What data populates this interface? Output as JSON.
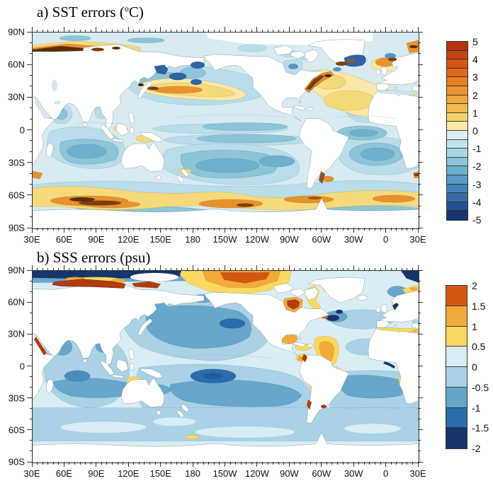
{
  "figure": {
    "bg": "#ffffff",
    "panels": [
      {
        "id": "a",
        "title_pre": "a) SST errors (",
        "title_sup": "o",
        "title_post": "C)",
        "variable": "SST error",
        "units": "°C"
      },
      {
        "id": "b",
        "title_pre": "b) SSS errors (psu)",
        "title_sup": "",
        "title_post": "",
        "variable": "SSS error",
        "units": "psu"
      }
    ]
  },
  "axes": {
    "x_labels": [
      "30E",
      "60E",
      "90E",
      "120E",
      "150E",
      "180",
      "150W",
      "120W",
      "90W",
      "60W",
      "30W",
      "0",
      "30E"
    ],
    "y_labels": [
      "90N",
      "60N",
      "30N",
      "0",
      "30S",
      "60S",
      "90S"
    ],
    "x_minor_step_deg": 5,
    "y_minor_step_deg": 10
  },
  "colorbars": {
    "a": {
      "tick_labels": [
        "5",
        "4",
        "3",
        "2",
        "1",
        "0",
        "-1",
        "-2",
        "-3",
        "-4",
        "-5"
      ],
      "colors": [
        "#b2330e",
        "#c54310",
        "#d35413",
        "#e0661a",
        "#e77d25",
        "#eb9332",
        "#efa841",
        "#f3bc52",
        "#f7d26c",
        "#fbeaa6",
        "#dceff4",
        "#c2e4ed",
        "#a7d6e5",
        "#8ac5da",
        "#6db0d0",
        "#579ac6",
        "#4484ba",
        "#336ca9",
        "#235092",
        "#16356f"
      ]
    },
    "b": {
      "tick_labels": [
        "2",
        "1.5",
        "1",
        "0.5",
        "0",
        "-0.5",
        "-1",
        "-1.5",
        "-2"
      ],
      "colors": [
        "#d2590f",
        "#f2ab3a",
        "#f9d960",
        "#d8ecf5",
        "#a8d1e3",
        "#64a5ca",
        "#2b6cab",
        "#16356b"
      ]
    }
  },
  "chart_data": [
    {
      "type": "heatmap",
      "subtype": "filled_contour_world_map",
      "title": "a) SST errors (°C)",
      "variable": "sea surface temperature error",
      "units": "°C",
      "projection": "equirectangular",
      "lon_start": "30E",
      "lon_span_deg": 360,
      "lat_range": [
        "90S",
        "90N"
      ],
      "x_ticks": [
        "30E",
        "60E",
        "90E",
        "120E",
        "150E",
        "180",
        "150W",
        "120W",
        "90W",
        "60W",
        "30W",
        "0",
        "30E"
      ],
      "y_ticks": [
        "90N",
        "60N",
        "30N",
        "0",
        "30S",
        "60S",
        "90S"
      ],
      "contour_interval": 0.5,
      "colorbar_range": [
        -5,
        5
      ],
      "colorbar_tick_labels": [
        5,
        4,
        3,
        2,
        1,
        0,
        -1,
        -2,
        -3,
        -4,
        -5
      ],
      "palette_top_to_bottom": [
        "#b2330e",
        "#c54310",
        "#d35413",
        "#e0661a",
        "#e77d25",
        "#eb9332",
        "#efa841",
        "#f3bc52",
        "#f7d26c",
        "#fbeaa6",
        "#dceff4",
        "#c2e4ed",
        "#a7d6e5",
        "#8ac5da",
        "#6db0d0",
        "#579ac6",
        "#4484ba",
        "#336ca9",
        "#235092",
        "#16356f"
      ],
      "land_color": "#ffffff",
      "grid": false,
      "legend_position": "right-colorbar",
      "features": [
        {
          "region": "Kuroshio Extension, NW Pacific ~35N",
          "value": "+1 to +3"
        },
        {
          "region": "Gulf Stream / NW Atlantic coastal band",
          "value": "+3 to +5"
        },
        {
          "region": "Central North Atlantic 30-50N",
          "value": "+1 to +2"
        },
        {
          "region": "Norwegian / Barents Sea coasts",
          "value": "+2 to +5"
        },
        {
          "region": "Siberian Arctic shelf coast",
          "value": "+3 to +5"
        },
        {
          "region": "Antarctic Circumpolar band 45-60S (circumglobal)",
          "value": "+1 to +3, cores +2 to +4 south of Indian Ocean"
        },
        {
          "region": "Agulhas retroflection",
          "value": "+1 to +3"
        },
        {
          "region": "Brazil-Malvinas confluence",
          "value": "+1 to +3"
        },
        {
          "region": "Subtropical gyres (S Indian, S Pacific, S Atlantic)",
          "value": "-1 to -2"
        },
        {
          "region": "Tropical Pacific off-equatorial bands",
          "value": "-1 to -2"
        },
        {
          "region": "Tropical Atlantic",
          "value": "-1 to -2"
        },
        {
          "region": "Sea of Okhotsk / NW subarctic Pacific",
          "value": "-3 to -4"
        },
        {
          "region": "Bering Sea",
          "value": "-3 to -4"
        },
        {
          "region": "East Greenland / Iceland waters",
          "value": "-3 to -4"
        },
        {
          "region": "Most open ocean background",
          "value": "0 to -1"
        }
      ]
    },
    {
      "type": "heatmap",
      "subtype": "filled_contour_world_map",
      "title": "b) SSS errors (psu)",
      "variable": "sea surface salinity error",
      "units": "psu",
      "projection": "equirectangular",
      "lon_start": "30E",
      "lon_span_deg": 360,
      "lat_range": [
        "90S",
        "90N"
      ],
      "x_ticks": [
        "30E",
        "60E",
        "90E",
        "120E",
        "150E",
        "180",
        "150W",
        "120W",
        "90W",
        "60W",
        "30W",
        "0",
        "30E"
      ],
      "y_ticks": [
        "90N",
        "60N",
        "30N",
        "0",
        "30S",
        "60S",
        "90S"
      ],
      "contour_interval": 0.5,
      "colorbar_range": [
        -2,
        2
      ],
      "colorbar_tick_labels": [
        2,
        1.5,
        1,
        0.5,
        0,
        -0.5,
        -1,
        -1.5,
        -2
      ],
      "palette_top_to_bottom": [
        "#d2590f",
        "#f2ab3a",
        "#f9d960",
        "#d8ecf5",
        "#a8d1e3",
        "#64a5ca",
        "#2b6cab",
        "#16356b"
      ],
      "land_color": "#ffffff",
      "grid": false,
      "legend_position": "right-colorbar",
      "features": [
        {
          "region": "Central Arctic 85-90N band",
          "value": "-1.5 to -2"
        },
        {
          "region": "Siberian shelf seas (Kara/Laptev coast)",
          "value": "> +2"
        },
        {
          "region": "High-Arctic blob ~180-130W, 75-88N",
          "value": "+1 to +2"
        },
        {
          "region": "Hudson Bay",
          "value": "+1.5 to > +2"
        },
        {
          "region": "Labrador / Baffin coasts, Greenland fringe",
          "value": "+0.5 to +1.5"
        },
        {
          "region": "Gulf of Mexico / Caribbean spots",
          "value": "+1 to +2"
        },
        {
          "region": "Amazon-Orinoco plume, W tropical Atlantic",
          "value": "+0.5 to +2"
        },
        {
          "region": "Panama Bight / Colombia Pacific coast",
          "value": "+1 to +2"
        },
        {
          "region": "Mediterranean Sea",
          "value": "+0.5 to +1"
        },
        {
          "region": "Red Sea",
          "value": "> +1.5"
        },
        {
          "region": "Peru and NE Brazil coastal strips",
          "value": "+0.5 to +1"
        },
        {
          "region": "Baltic Sea and subpolar N Atlantic spots",
          "value": "-1.5 to -2"
        },
        {
          "region": "North Pacific central gyre",
          "value": "-0.5 to -1.5"
        },
        {
          "region": "South Pacific band New Zealand to 90W, core near 10S 160W",
          "value": "-1 to -1.5"
        },
        {
          "region": "Southern Indian Ocean band",
          "value": "-0.5 to -1"
        },
        {
          "region": "Most open ocean background",
          "value": "0 to -0.5"
        }
      ]
    }
  ]
}
